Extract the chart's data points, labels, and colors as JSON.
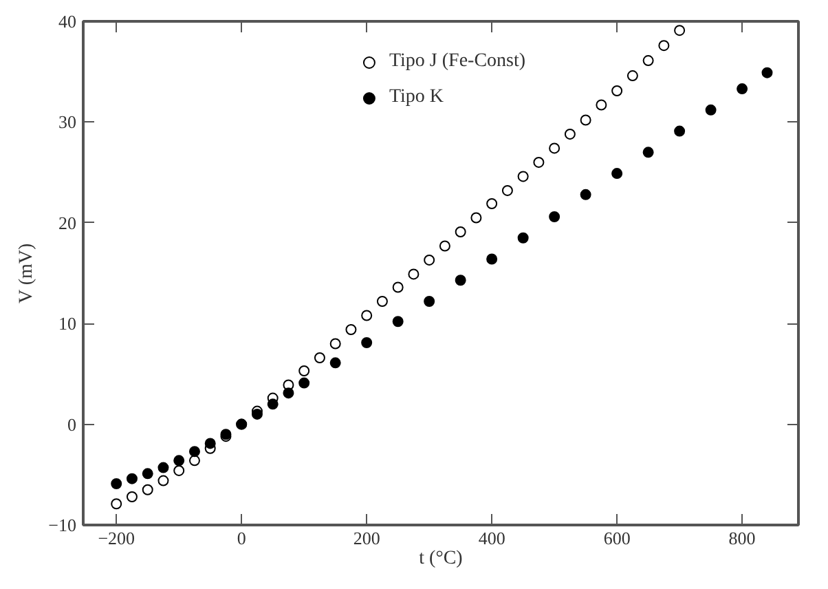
{
  "chart_data": {
    "type": "scatter",
    "xlabel": "t (°C)",
    "ylabel": "V (mV)",
    "xlim": [
      -253,
      890
    ],
    "ylim": [
      -10,
      40
    ],
    "xticks": [
      -200,
      0,
      200,
      400,
      600,
      800
    ],
    "yticks": [
      -10,
      0,
      10,
      20,
      30,
      40
    ],
    "grid": false,
    "legend": "top",
    "series": [
      {
        "name": "Tipo J (Fe-Const)",
        "color": "#000000",
        "marker": "open_circle",
        "x": [
          -200,
          -175,
          -150,
          -125,
          -100,
          -75,
          -50,
          -25,
          0,
          25,
          50,
          75,
          100,
          125,
          150,
          175,
          200,
          225,
          250,
          275,
          300,
          325,
          350,
          375,
          400,
          425,
          450,
          475,
          500,
          525,
          550,
          575,
          600,
          625,
          650,
          675,
          700
        ],
        "values": [
          -7.9,
          -7.2,
          -6.5,
          -5.6,
          -4.6,
          -3.6,
          -2.4,
          -1.2,
          0,
          1.3,
          2.6,
          3.9,
          5.3,
          6.6,
          8.0,
          9.4,
          10.8,
          12.2,
          13.6,
          14.9,
          16.3,
          17.7,
          19.1,
          20.5,
          21.9,
          23.2,
          24.6,
          26.0,
          27.4,
          28.8,
          30.2,
          31.7,
          33.1,
          34.6,
          36.1,
          37.6,
          39.1
        ]
      },
      {
        "name": "Tipo K",
        "color": "#000000",
        "marker": "circle",
        "x": [
          -200,
          -175,
          -150,
          -125,
          -100,
          -75,
          -50,
          -25,
          0,
          25,
          50,
          75,
          100,
          150,
          200,
          250,
          300,
          350,
          400,
          450,
          500,
          550,
          600,
          650,
          700,
          750,
          800,
          840
        ],
        "values": [
          -5.9,
          -5.4,
          -4.9,
          -4.3,
          -3.6,
          -2.7,
          -1.9,
          -1.0,
          0,
          1.0,
          2.0,
          3.1,
          4.1,
          6.1,
          8.1,
          10.2,
          12.2,
          14.3,
          16.4,
          18.5,
          20.6,
          22.8,
          24.9,
          27.0,
          29.1,
          31.2,
          33.3,
          34.9
        ]
      }
    ]
  }
}
